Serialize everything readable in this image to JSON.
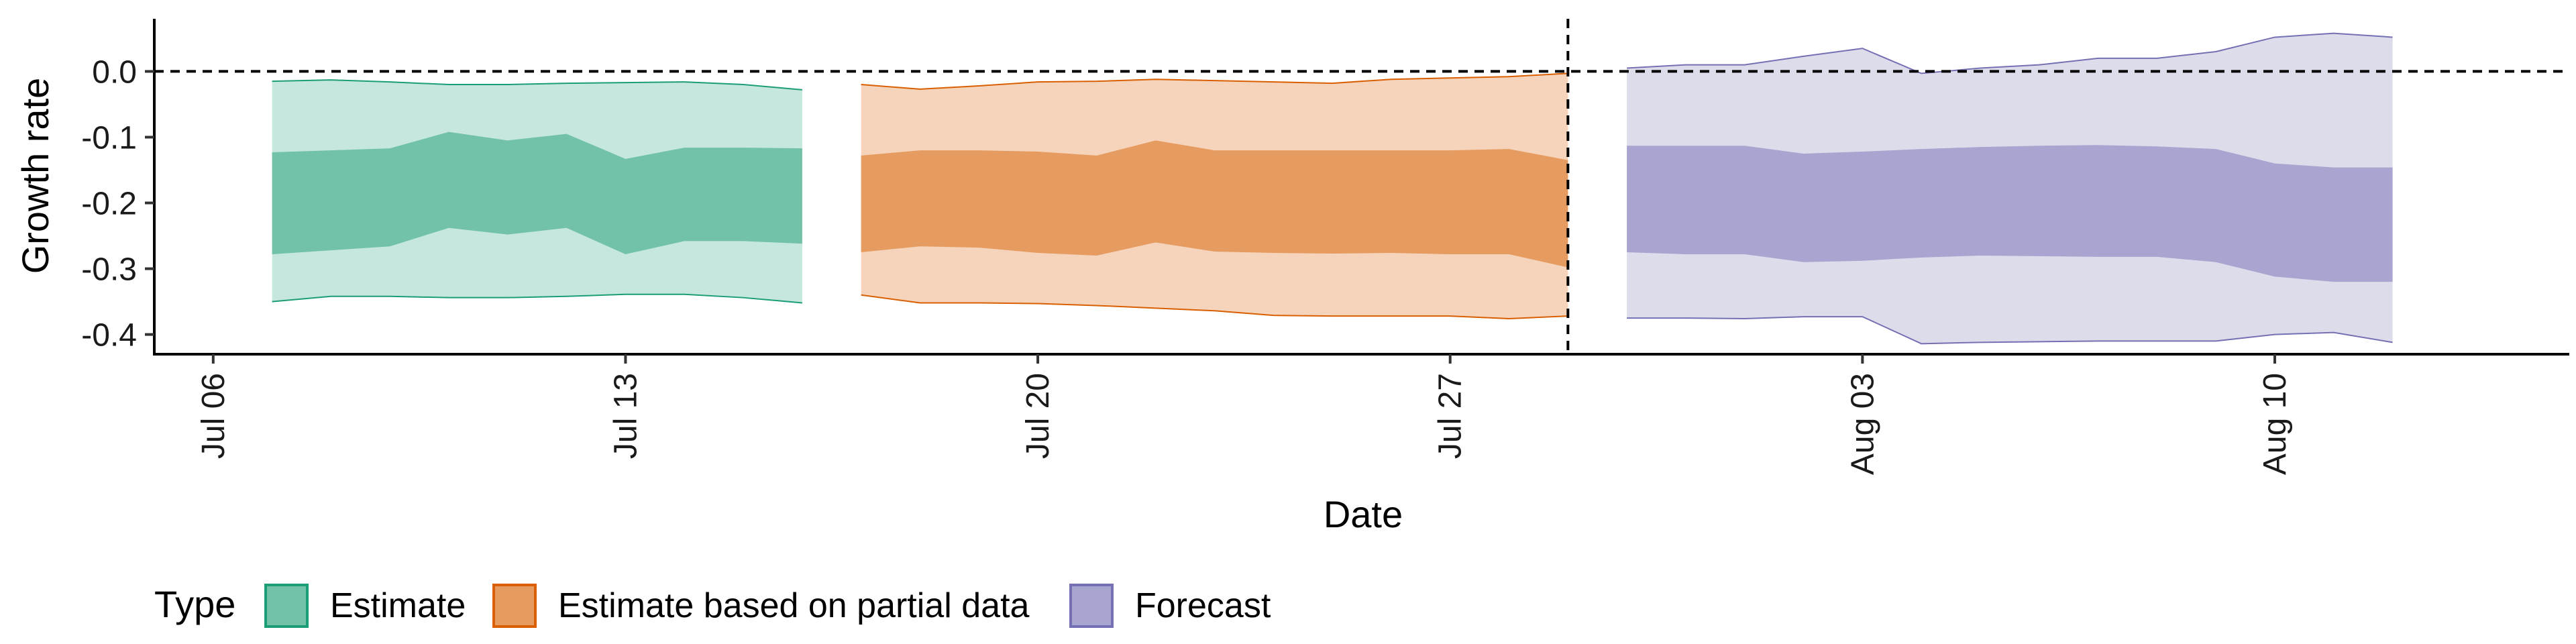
{
  "chart_data": {
    "type": "area",
    "xlabel": "Date",
    "ylabel": "Growth rate",
    "ylim": [
      -0.43,
      0.08
    ],
    "xlim": [
      "2020-07-05",
      "2020-08-15"
    ],
    "y_ticks": [
      {
        "value": 0.0,
        "label": "0.0"
      },
      {
        "value": -0.1,
        "label": "-0.1"
      },
      {
        "value": -0.2,
        "label": "-0.2"
      },
      {
        "value": -0.3,
        "label": "-0.3"
      },
      {
        "value": -0.4,
        "label": "-0.4"
      }
    ],
    "x_ticks": [
      {
        "date": "2020-07-06",
        "label": "Jul 06"
      },
      {
        "date": "2020-07-13",
        "label": "Jul 13"
      },
      {
        "date": "2020-07-20",
        "label": "Jul 20"
      },
      {
        "date": "2020-07-27",
        "label": "Jul 27"
      },
      {
        "date": "2020-08-03",
        "label": "Aug 03"
      },
      {
        "date": "2020-08-10",
        "label": "Aug 10"
      }
    ],
    "reference_lines": {
      "horizontal_dashed_y": 0.0,
      "vertical_dashed_date": "2020-07-29"
    },
    "grid": false,
    "legend": {
      "placement": "bottom-left",
      "title": "Type",
      "entries": [
        "Estimate",
        "Estimate based on partial data",
        "Forecast"
      ]
    },
    "series": [
      {
        "name": "Estimate",
        "fill_outer": "#c6e7de",
        "fill_inner": "#72c2a9",
        "stroke": "#1b9e77",
        "dates": [
          "2020-07-07",
          "2020-07-08",
          "2020-07-09",
          "2020-07-10",
          "2020-07-11",
          "2020-07-12",
          "2020-07-13",
          "2020-07-14",
          "2020-07-15",
          "2020-07-16"
        ],
        "upper90": [
          -0.015,
          -0.013,
          -0.016,
          -0.02,
          -0.02,
          -0.018,
          -0.017,
          -0.016,
          -0.02,
          -0.028
        ],
        "upper50": [
          -0.123,
          -0.12,
          -0.117,
          -0.092,
          -0.105,
          -0.095,
          -0.133,
          -0.116,
          -0.116,
          -0.117
        ],
        "lower50": [
          -0.278,
          -0.272,
          -0.266,
          -0.238,
          -0.248,
          -0.238,
          -0.278,
          -0.258,
          -0.258,
          -0.262
        ],
        "lower90": [
          -0.35,
          -0.342,
          -0.342,
          -0.344,
          -0.344,
          -0.342,
          -0.339,
          -0.339,
          -0.344,
          -0.352
        ]
      },
      {
        "name": "Estimate based on partial data",
        "fill_outer": "#f5d4bb",
        "fill_inner": "#e69b60",
        "stroke": "#d95f02",
        "dates": [
          "2020-07-17",
          "2020-07-18",
          "2020-07-19",
          "2020-07-20",
          "2020-07-21",
          "2020-07-22",
          "2020-07-23",
          "2020-07-24",
          "2020-07-25",
          "2020-07-26",
          "2020-07-27",
          "2020-07-28",
          "2020-07-29"
        ],
        "upper90": [
          -0.02,
          -0.027,
          -0.022,
          -0.016,
          -0.015,
          -0.012,
          -0.014,
          -0.016,
          -0.018,
          -0.012,
          -0.01,
          -0.008,
          -0.003
        ],
        "upper50": [
          -0.128,
          -0.12,
          -0.12,
          -0.122,
          -0.128,
          -0.105,
          -0.12,
          -0.12,
          -0.12,
          -0.12,
          -0.12,
          -0.118,
          -0.135
        ],
        "lower50": [
          -0.275,
          -0.266,
          -0.268,
          -0.276,
          -0.28,
          -0.26,
          -0.274,
          -0.276,
          -0.277,
          -0.276,
          -0.278,
          -0.278,
          -0.298
        ],
        "lower90": [
          -0.34,
          -0.352,
          -0.352,
          -0.353,
          -0.356,
          -0.36,
          -0.364,
          -0.371,
          -0.372,
          -0.372,
          -0.372,
          -0.376,
          -0.372
        ]
      },
      {
        "name": "Forecast",
        "fill_outer": "#dddceb",
        "fill_inner": "#a8a5d0",
        "stroke": "#7570b3",
        "dates": [
          "2020-07-30",
          "2020-07-31",
          "2020-08-01",
          "2020-08-02",
          "2020-08-03",
          "2020-08-04",
          "2020-08-05",
          "2020-08-06",
          "2020-08-07",
          "2020-08-08",
          "2020-08-09",
          "2020-08-10",
          "2020-08-11",
          "2020-08-12"
        ],
        "upper90": [
          0.005,
          0.01,
          0.01,
          0.023,
          0.035,
          -0.003,
          0.005,
          0.01,
          0.02,
          0.02,
          0.03,
          0.052,
          0.058,
          0.052
        ],
        "upper50": [
          -0.113,
          -0.113,
          -0.113,
          -0.125,
          -0.122,
          -0.118,
          -0.115,
          -0.113,
          -0.112,
          -0.114,
          -0.118,
          -0.14,
          -0.146,
          -0.146
        ],
        "lower50": [
          -0.275,
          -0.278,
          -0.278,
          -0.29,
          -0.288,
          -0.283,
          -0.28,
          -0.281,
          -0.282,
          -0.282,
          -0.29,
          -0.312,
          -0.32,
          -0.32
        ],
        "lower90": [
          -0.375,
          -0.375,
          -0.376,
          -0.373,
          -0.373,
          -0.414,
          -0.412,
          -0.411,
          -0.41,
          -0.41,
          -0.41,
          -0.4,
          -0.397,
          -0.412
        ]
      }
    ]
  }
}
